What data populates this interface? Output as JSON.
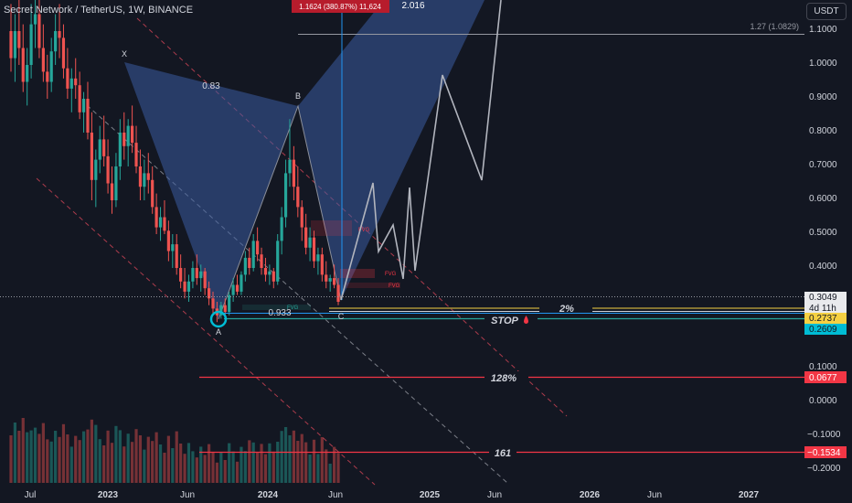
{
  "header": {
    "title": "Secret Network / TetherUS, 1W, BINANCE",
    "currency": "USDT"
  },
  "colors": {
    "bg": "#131722",
    "up": "#26a69a",
    "down": "#ef5350",
    "pattern_fill": "#3a5ba0",
    "projection": "#b2b5be",
    "fvg": "#f23645",
    "label_red": "#d81b3b",
    "label_yellow": "#f5d042",
    "label_cyan": "#00bcd4",
    "label_grey": "#c8c8c8"
  },
  "axis": {
    "y_ticks": [
      "1.1000",
      "1.0000",
      "0.9000",
      "0.8000",
      "0.7000",
      "0.6000",
      "0.5000",
      "0.4000",
      "0.1000",
      "0.0000",
      "−0.1000",
      "−0.2000"
    ],
    "x_ticks": [
      "Jul",
      "2023",
      "Jun",
      "2024",
      "Jun",
      "2025",
      "Jun",
      "2026",
      "Jun",
      "2027"
    ]
  },
  "price_labels": {
    "current": "0.3049",
    "countdown": "4d 11h",
    "yellow": "0.2737",
    "cyan": "0.2609",
    "l128": "0.0677",
    "l161": "−0.1534"
  },
  "annotations": {
    "measure": "1.1624 (380.87%) 11,624",
    "ext_2016": "2.016",
    "fib_127": "1.27 (1.0829)",
    "ratio_083": "0.83",
    "ratio_0933": "0.933",
    "pt_x": "X",
    "pt_a": "A",
    "pt_b": "B",
    "pt_c": "C",
    "fvg": "FVG",
    "pct_2": "2%",
    "stop": "STOP",
    "pct_128": "128%",
    "num_161": "161"
  },
  "chart_data": {
    "type": "candlestick",
    "symbol": "Secret Network / TetherUS",
    "interval": "1W",
    "exchange": "BINANCE",
    "y_ticks": [
      1.1,
      1.0,
      0.9,
      0.8,
      0.7,
      0.6,
      0.5,
      0.4,
      0.1,
      0.0,
      -0.1,
      -0.2
    ],
    "levels": {
      "current": 0.3049,
      "target_1_27": 1.0829,
      "level_2pct": 0.2737,
      "stop": 0.2609,
      "level_128": 0.0677,
      "level_161": -0.1534
    },
    "harmonic_points": {
      "X": 0.98,
      "A": 0.245,
      "B": 0.87,
      "C": 0.285
    },
    "ratios": {
      "XB": 0.83,
      "AC": 0.933
    },
    "candles": [
      [
        1.1,
        1.18,
        0.98,
        1.02
      ],
      [
        1.02,
        1.15,
        0.95,
        1.1
      ],
      [
        1.1,
        1.2,
        1.0,
        1.05
      ],
      [
        1.05,
        1.12,
        0.92,
        0.95
      ],
      [
        0.95,
        1.05,
        0.88,
        1.0
      ],
      [
        1.0,
        1.18,
        0.96,
        1.12
      ],
      [
        1.12,
        1.22,
        1.05,
        1.15
      ],
      [
        1.15,
        1.2,
        1.02,
        1.05
      ],
      [
        1.05,
        1.12,
        0.95,
        0.98
      ],
      [
        0.98,
        1.03,
        0.9,
        0.95
      ],
      [
        0.95,
        1.08,
        0.92,
        1.04
      ],
      [
        1.04,
        1.15,
        1.0,
        1.1
      ],
      [
        1.1,
        1.18,
        1.02,
        1.08
      ],
      [
        1.08,
        1.12,
        0.96,
        0.99
      ],
      [
        0.99,
        1.05,
        0.9,
        0.93
      ],
      [
        0.93,
        0.99,
        0.86,
        0.96
      ],
      [
        0.96,
        1.02,
        0.9,
        0.94
      ],
      [
        0.94,
        0.98,
        0.84,
        0.86
      ],
      [
        0.86,
        0.92,
        0.8,
        0.9
      ],
      [
        0.9,
        0.95,
        0.78,
        0.8
      ],
      [
        0.8,
        0.86,
        0.6,
        0.66
      ],
      [
        0.66,
        0.75,
        0.58,
        0.72
      ],
      [
        0.72,
        0.82,
        0.68,
        0.78
      ],
      [
        0.78,
        0.85,
        0.7,
        0.73
      ],
      [
        0.73,
        0.78,
        0.62,
        0.65
      ],
      [
        0.65,
        0.7,
        0.56,
        0.6
      ],
      [
        0.6,
        0.74,
        0.58,
        0.7
      ],
      [
        0.7,
        0.84,
        0.66,
        0.8
      ],
      [
        0.8,
        0.86,
        0.72,
        0.76
      ],
      [
        0.76,
        0.84,
        0.7,
        0.82
      ],
      [
        0.82,
        0.88,
        0.74,
        0.77
      ],
      [
        0.77,
        0.82,
        0.68,
        0.7
      ],
      [
        0.7,
        0.75,
        0.6,
        0.64
      ],
      [
        0.64,
        0.72,
        0.6,
        0.68
      ],
      [
        0.68,
        0.74,
        0.62,
        0.66
      ],
      [
        0.66,
        0.7,
        0.56,
        0.58
      ],
      [
        0.58,
        0.62,
        0.5,
        0.52
      ],
      [
        0.52,
        0.58,
        0.48,
        0.55
      ],
      [
        0.55,
        0.6,
        0.5,
        0.51
      ],
      [
        0.51,
        0.54,
        0.42,
        0.45
      ],
      [
        0.45,
        0.5,
        0.4,
        0.47
      ],
      [
        0.47,
        0.5,
        0.38,
        0.4
      ],
      [
        0.4,
        0.44,
        0.34,
        0.36
      ],
      [
        0.36,
        0.4,
        0.31,
        0.33
      ],
      [
        0.33,
        0.38,
        0.3,
        0.36
      ],
      [
        0.36,
        0.42,
        0.34,
        0.4
      ],
      [
        0.4,
        0.44,
        0.35,
        0.37
      ],
      [
        0.37,
        0.41,
        0.33,
        0.39
      ],
      [
        0.39,
        0.4,
        0.32,
        0.34
      ],
      [
        0.34,
        0.36,
        0.29,
        0.31
      ],
      [
        0.31,
        0.33,
        0.26,
        0.28
      ],
      [
        0.28,
        0.3,
        0.24,
        0.26
      ],
      [
        0.26,
        0.3,
        0.25,
        0.29
      ],
      [
        0.29,
        0.31,
        0.26,
        0.27
      ],
      [
        0.27,
        0.33,
        0.26,
        0.32
      ],
      [
        0.32,
        0.37,
        0.3,
        0.35
      ],
      [
        0.35,
        0.38,
        0.32,
        0.33
      ],
      [
        0.33,
        0.39,
        0.32,
        0.38
      ],
      [
        0.38,
        0.45,
        0.36,
        0.43
      ],
      [
        0.43,
        0.46,
        0.38,
        0.4
      ],
      [
        0.4,
        0.5,
        0.39,
        0.48
      ],
      [
        0.48,
        0.52,
        0.42,
        0.44
      ],
      [
        0.44,
        0.46,
        0.38,
        0.4
      ],
      [
        0.4,
        0.43,
        0.36,
        0.38
      ],
      [
        0.38,
        0.41,
        0.35,
        0.39
      ],
      [
        0.39,
        0.4,
        0.34,
        0.36
      ],
      [
        0.36,
        0.5,
        0.35,
        0.48
      ],
      [
        0.48,
        0.58,
        0.44,
        0.55
      ],
      [
        0.55,
        0.72,
        0.52,
        0.68
      ],
      [
        0.68,
        0.84,
        0.64,
        0.72
      ],
      [
        0.72,
        0.76,
        0.6,
        0.64
      ],
      [
        0.64,
        0.7,
        0.55,
        0.58
      ],
      [
        0.58,
        0.6,
        0.48,
        0.52
      ],
      [
        0.52,
        0.56,
        0.44,
        0.46
      ],
      [
        0.46,
        0.52,
        0.42,
        0.49
      ],
      [
        0.49,
        0.51,
        0.4,
        0.42
      ],
      [
        0.42,
        0.46,
        0.38,
        0.44
      ],
      [
        0.44,
        0.46,
        0.36,
        0.38
      ],
      [
        0.38,
        0.42,
        0.34,
        0.36
      ],
      [
        0.36,
        0.38,
        0.33,
        0.37
      ],
      [
        0.37,
        0.41,
        0.34,
        0.35
      ],
      [
        0.35,
        0.37,
        0.29,
        0.3
      ]
    ],
    "projection_path": [
      [
        0.285,
        "C"
      ],
      [
        0.7,
        "high"
      ],
      [
        0.45,
        "low"
      ],
      [
        0.62,
        "high"
      ],
      [
        0.4,
        "low"
      ],
      [
        0.95,
        "high"
      ],
      [
        0.66,
        "low"
      ],
      [
        1.15,
        "high"
      ]
    ]
  }
}
